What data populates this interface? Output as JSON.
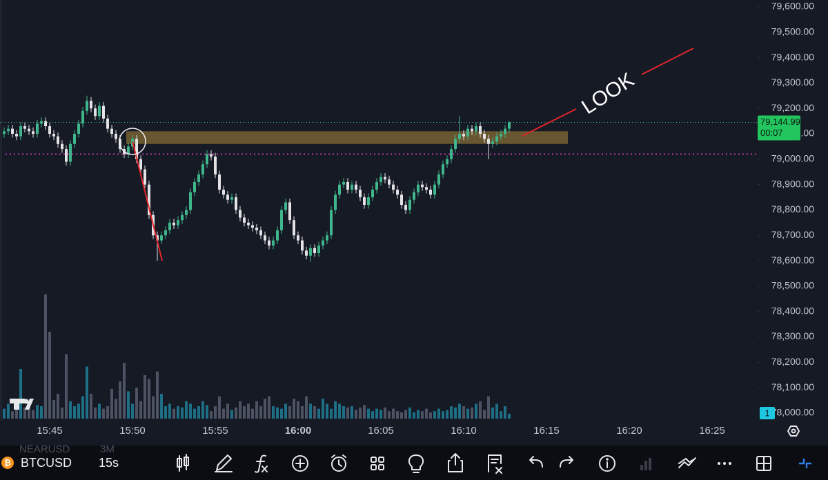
{
  "chart_data": {
    "type": "candlestick",
    "symbol": "BTCUSD",
    "interval": "15s",
    "overlay_text": [
      "NEARUSD",
      "3M"
    ],
    "annotation": "LOOK",
    "price_tag": "79,144.99",
    "countdown": "00:07",
    "volume_badge": "1",
    "xlim": [
      -1,
      182
    ],
    "ylim": [
      77970,
      79627
    ],
    "vlim": [
      0,
      100
    ],
    "xticks": [
      {
        "value": 11,
        "label": "15:45"
      },
      {
        "value": 31,
        "label": "15:50"
      },
      {
        "value": 51,
        "label": "15:55"
      },
      {
        "value": 71,
        "label": "16:00"
      },
      {
        "value": 91,
        "label": "16:05"
      },
      {
        "value": 111,
        "label": "16:10"
      },
      {
        "value": 131,
        "label": "16:15"
      },
      {
        "value": 151,
        "label": "16:20"
      },
      {
        "value": 171,
        "label": "16:25"
      }
    ],
    "yticks": [
      {
        "value": 78000,
        "label": "78,000.00"
      },
      {
        "value": 78100,
        "label": "78,100.00"
      },
      {
        "value": 78200,
        "label": "78,200.00"
      },
      {
        "value": 78300,
        "label": "78,300.00"
      },
      {
        "value": 78400,
        "label": "78,400.00"
      },
      {
        "value": 78500,
        "label": "78,500.00"
      },
      {
        "value": 78600,
        "label": "78,600.00"
      },
      {
        "value": 78700,
        "label": "78,700.00"
      },
      {
        "value": 78800,
        "label": "78,800.00"
      },
      {
        "value": 78900,
        "label": "78,900.00"
      },
      {
        "value": 79000,
        "label": "79,000.00"
      },
      {
        "value": 79100,
        "label": "79,100.00"
      },
      {
        "value": 79200,
        "label": "79,200.00"
      },
      {
        "value": 79300,
        "label": "79,300.00"
      },
      {
        "value": 79400,
        "label": "79,400.00"
      },
      {
        "value": 79500,
        "label": "79,500.00"
      },
      {
        "value": 79600,
        "label": "79,600.00"
      }
    ],
    "zone": [
      79060,
      79110
    ],
    "alert_line": 79020,
    "up_color": "#3fb68b",
    "down_color": "#e3e3e6",
    "up_volume_color": "#1e6f86",
    "down_volume_color": "#4d5363",
    "open": [
      79100,
      79110,
      79120,
      79100,
      79090,
      79130,
      79120,
      79110,
      79100,
      79140,
      79150,
      79130,
      79100,
      79090,
      79060,
      79040,
      78990,
      79060,
      79100,
      79140,
      79190,
      79230,
      79200,
      79170,
      79210,
      79160,
      79120,
      79100,
      79080,
      79040,
      79020,
      79050,
      79080,
      79000,
      78960,
      78900,
      78780,
      78700,
      78680,
      78700,
      78720,
      78750,
      78740,
      78760,
      78780,
      78800,
      78870,
      78910,
      78940,
      78980,
      79020,
      79010,
      78940,
      78880,
      78860,
      78840,
      78850,
      78800,
      78770,
      78750,
      78740,
      78730,
      78720,
      78700,
      78680,
      78660,
      78680,
      78720,
      78800,
      78830,
      78760,
      78700,
      78680,
      78640,
      78620,
      78650,
      78630,
      78660,
      78680,
      78700,
      78800,
      78860,
      78900,
      78910,
      78880,
      78900,
      78880,
      78850,
      78820,
      78850,
      78880,
      78910,
      78930,
      78920,
      78900,
      78880,
      78860,
      78820,
      78800,
      78840,
      78870,
      78900,
      78890,
      78880,
      78860,
      78900,
      78940,
      78980,
      79000,
      79040,
      79080,
      79100,
      79090,
      79120,
      79110,
      79130,
      79100,
      79080,
      79060,
      79070,
      79090,
      79100,
      79120
    ],
    "high": [
      79125,
      79135,
      79135,
      79115,
      79145,
      79145,
      79135,
      79125,
      79155,
      79165,
      79165,
      79145,
      79115,
      79105,
      79075,
      79055,
      79075,
      79115,
      79155,
      79205,
      79250,
      79245,
      79215,
      79225,
      79225,
      79175,
      79135,
      79115,
      79095,
      79055,
      79065,
      79095,
      79095,
      79015,
      78975,
      78915,
      78795,
      78715,
      78715,
      78735,
      78765,
      78765,
      78775,
      78795,
      78815,
      78885,
      78925,
      78955,
      78995,
      79035,
      79035,
      79025,
      78955,
      78895,
      78875,
      78865,
      78865,
      78815,
      78785,
      78765,
      78755,
      78745,
      78735,
      78715,
      78695,
      78695,
      78735,
      78815,
      78845,
      78845,
      78775,
      78715,
      78695,
      78655,
      78665,
      78665,
      78675,
      78695,
      78715,
      78815,
      78875,
      78915,
      78925,
      78925,
      78915,
      78915,
      78895,
      78865,
      78865,
      78895,
      78925,
      78945,
      78945,
      78935,
      78915,
      78895,
      78875,
      78835,
      78855,
      78885,
      78915,
      78915,
      78905,
      78895,
      78915,
      78955,
      78995,
      79015,
      79055,
      79095,
      79170,
      79115,
      79135,
      79135,
      79145,
      79145,
      79115,
      79095,
      79085,
      79105,
      79115,
      79135,
      79150
    ],
    "low": [
      79085,
      79095,
      79085,
      79075,
      79075,
      79105,
      79095,
      79085,
      79085,
      79125,
      79115,
      79085,
      79075,
      79045,
      79025,
      78975,
      78975,
      79045,
      79085,
      79125,
      79175,
      79185,
      79155,
      79155,
      79145,
      79105,
      79085,
      79065,
      79025,
      79005,
      79005,
      79035,
      78985,
      78945,
      78885,
      78765,
      78685,
      78600,
      78665,
      78685,
      78705,
      78725,
      78725,
      78745,
      78765,
      78785,
      78855,
      78895,
      78925,
      78965,
      78995,
      78925,
      78865,
      78845,
      78825,
      78825,
      78785,
      78755,
      78735,
      78725,
      78715,
      78705,
      78685,
      78665,
      78645,
      78645,
      78665,
      78705,
      78785,
      78745,
      78685,
      78665,
      78625,
      78605,
      78595,
      78615,
      78615,
      78645,
      78665,
      78685,
      78785,
      78845,
      78885,
      78865,
      78865,
      78865,
      78835,
      78805,
      78805,
      78835,
      78865,
      78895,
      78905,
      78885,
      78865,
      78845,
      78805,
      78785,
      78785,
      78825,
      78855,
      78875,
      78865,
      78845,
      78845,
      78885,
      78925,
      78965,
      78985,
      79025,
      79065,
      79075,
      79075,
      79095,
      79095,
      79085,
      79065,
      79000,
      79045,
      79055,
      79075,
      79085,
      79105
    ],
    "close": [
      79110,
      79120,
      79100,
      79090,
      79130,
      79120,
      79110,
      79100,
      79140,
      79150,
      79130,
      79100,
      79090,
      79060,
      79040,
      78990,
      79060,
      79100,
      79140,
      79190,
      79230,
      79200,
      79170,
      79210,
      79160,
      79120,
      79100,
      79080,
      79040,
      79020,
      79050,
      79080,
      79000,
      78960,
      78900,
      78780,
      78700,
      78680,
      78700,
      78720,
      78750,
      78740,
      78760,
      78780,
      78800,
      78870,
      78910,
      78940,
      78980,
      79020,
      79010,
      78940,
      78880,
      78860,
      78840,
      78850,
      78800,
      78770,
      78750,
      78740,
      78730,
      78720,
      78700,
      78680,
      78660,
      78680,
      78720,
      78800,
      78830,
      78760,
      78700,
      78680,
      78640,
      78620,
      78650,
      78630,
      78660,
      78680,
      78700,
      78800,
      78860,
      78900,
      78910,
      78880,
      78900,
      78880,
      78850,
      78820,
      78850,
      78880,
      78910,
      78930,
      78920,
      78900,
      78880,
      78860,
      78820,
      78800,
      78840,
      78870,
      78900,
      78890,
      78880,
      78860,
      78900,
      78940,
      78980,
      79000,
      79040,
      79080,
      79100,
      79090,
      79120,
      79110,
      79130,
      79100,
      79080,
      79060,
      79070,
      79090,
      79100,
      79120,
      79144.99
    ],
    "volume": [
      8,
      12,
      6,
      10,
      40,
      9,
      14,
      7,
      11,
      10,
      100,
      70,
      15,
      20,
      9,
      52,
      14,
      10,
      12,
      18,
      42,
      20,
      9,
      12,
      8,
      10,
      24,
      16,
      30,
      45,
      22,
      12,
      25,
      14,
      35,
      32,
      18,
      38,
      20,
      10,
      12,
      8,
      10,
      9,
      14,
      12,
      8,
      10,
      14,
      11,
      6,
      10,
      18,
      8,
      12,
      7,
      9,
      14,
      10,
      12,
      8,
      14,
      10,
      16,
      18,
      10,
      9,
      8,
      12,
      10,
      16,
      14,
      10,
      18,
      12,
      10,
      8,
      16,
      12,
      8,
      14,
      12,
      10,
      9,
      10,
      7,
      9,
      11,
      8,
      6,
      8,
      7,
      9,
      6,
      8,
      6,
      5,
      7,
      9,
      5,
      7,
      6,
      8,
      5,
      6,
      8,
      6,
      7,
      10,
      9,
      12,
      10,
      8,
      9,
      12,
      14,
      7,
      18,
      9,
      12,
      6,
      10,
      4
    ]
  }
}
